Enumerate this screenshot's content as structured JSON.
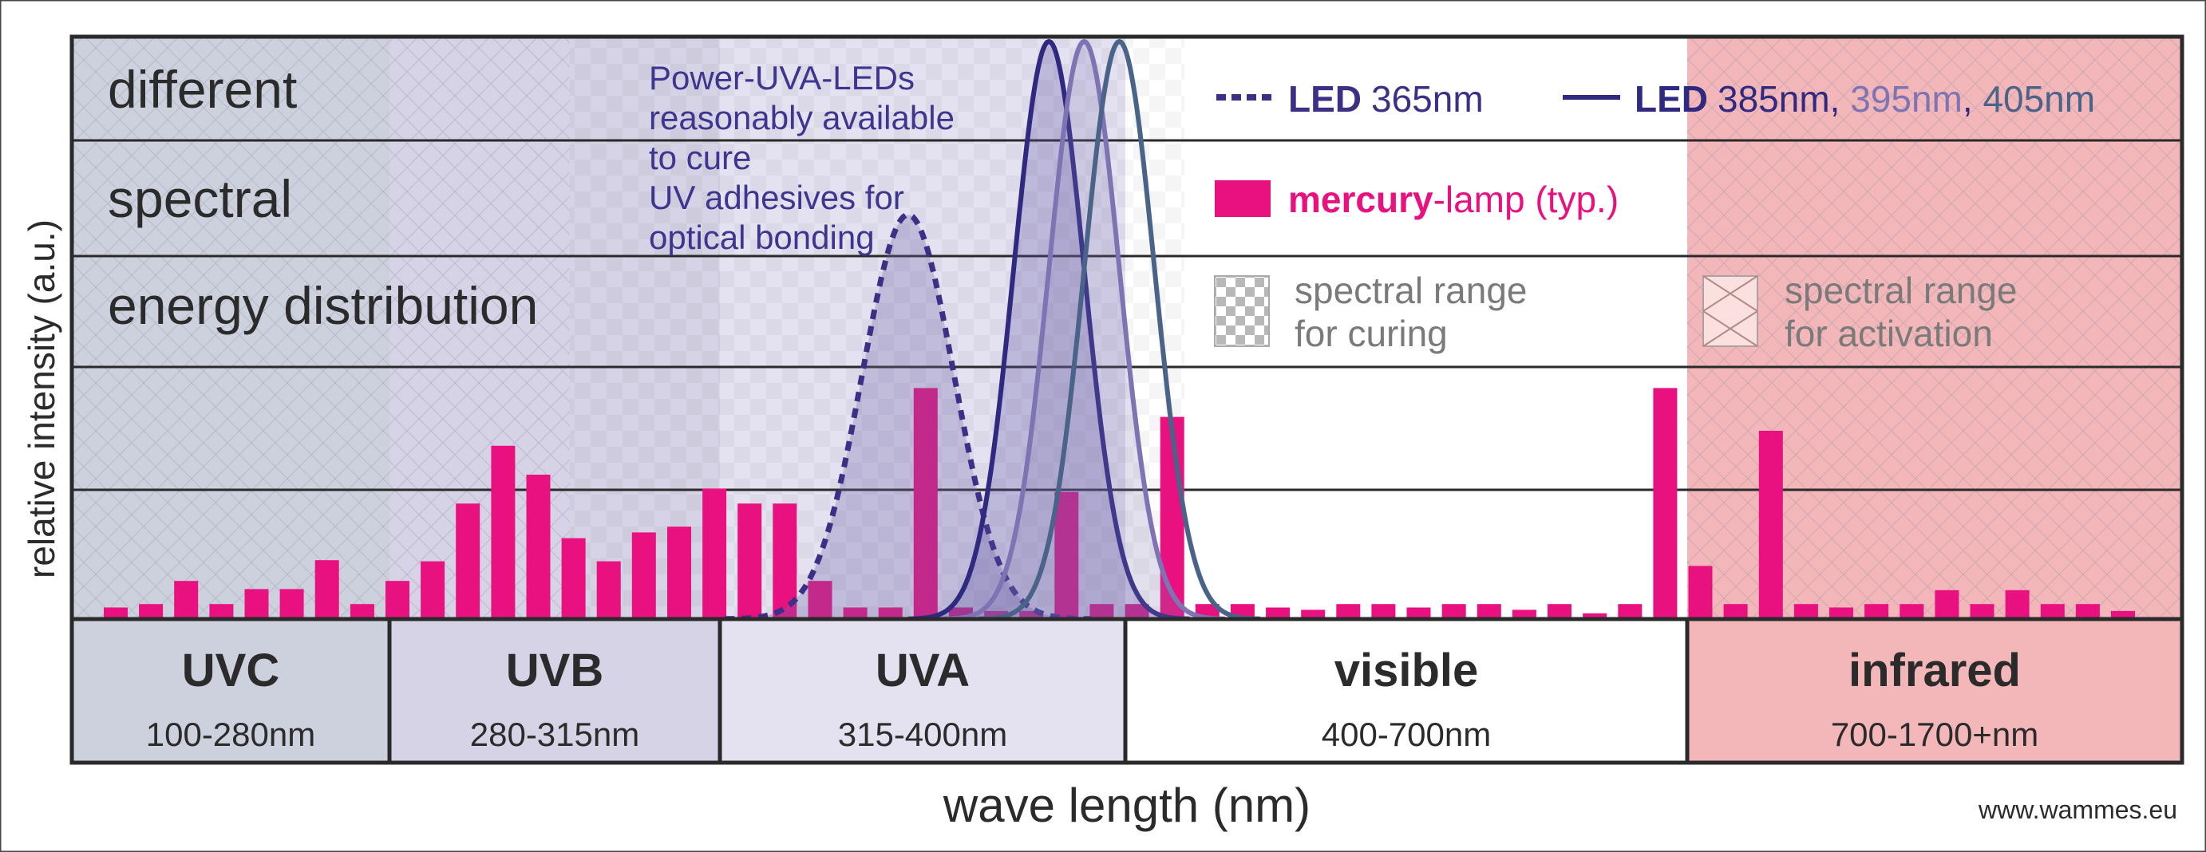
{
  "labels": {
    "ylabel": "relative intensity (a.u.)",
    "xlabel": "wave length (nm)",
    "source": "www.wammes.eu",
    "row_text": [
      "different",
      "spectral",
      "energy distribution"
    ],
    "annotation": [
      "Power-UVA-LEDs",
      "reasonably available",
      "to cure",
      "UV adhesives for",
      "optical bonding"
    ]
  },
  "legend": {
    "led365": {
      "prefix": "LED",
      "value": "365nm"
    },
    "led_multi": {
      "prefix": "LED",
      "v1": "385nm",
      "sep1": ", ",
      "v2": "395nm",
      "sep2": ", ",
      "v3": "405nm"
    },
    "mercury": {
      "bold": "mercury",
      "rest": "-lamp (typ.)"
    },
    "curing": [
      "spectral range",
      "for curing"
    ],
    "activation": [
      "spectral range",
      "for activation"
    ]
  },
  "bands": [
    {
      "name": "UVC",
      "range": "100-280nm",
      "color": "#cdd1dd"
    },
    {
      "name": "UVB",
      "range": "280-315nm",
      "color": "#d6d3e6"
    },
    {
      "name": "UVA",
      "range": "315-400nm",
      "color": "#e4e2f0"
    },
    {
      "name": "visible",
      "range": "400-700nm",
      "color": "#ffffff"
    },
    {
      "name": "infrared",
      "range": "700-1700+nm",
      "color": "#f4b7b9"
    }
  ],
  "colors": {
    "mercury": "#e8117f",
    "led365": "#3b2f86",
    "led385": "#2f2a80",
    "led395": "#7e74b3",
    "led405": "#4a6388",
    "frame": "#222222",
    "annotation": "#3d3590",
    "text": "#2b2b2b"
  },
  "chart_data": {
    "type": "bar",
    "xlabel": "wave length (nm)",
    "ylabel": "relative intensity (a.u.)",
    "ylim": [
      0,
      5
    ],
    "grid": true,
    "series": [
      {
        "name": "mercury-lamp (typ.)",
        "type": "bar",
        "values": [
          0.1,
          0.13,
          0.33,
          0.13,
          0.26,
          0.26,
          0.51,
          0.13,
          0.33,
          0.5,
          1.0,
          1.5,
          1.25,
          0.7,
          0.5,
          0.75,
          0.8,
          1.13,
          1.0,
          1.0,
          0.33,
          0.1,
          0.1,
          2.0,
          0.1,
          0.07,
          0.07,
          1.1,
          0.13,
          0.13,
          1.75,
          0.13,
          0.13,
          0.1,
          0.08,
          0.13,
          0.13,
          0.1,
          0.13,
          0.13,
          0.08,
          0.13,
          0.05,
          0.13,
          2.0,
          0.46,
          0.13,
          1.63,
          0.13,
          0.1,
          0.13,
          0.13,
          0.25,
          0.13,
          0.25,
          0.13,
          0.13,
          0.07
        ]
      },
      {
        "name": "LED 365nm",
        "type": "line",
        "peak_index": 22.5,
        "width": 1.3,
        "peak": 3.5
      },
      {
        "name": "LED 385nm",
        "type": "line",
        "peak_index": 26.5,
        "width": 1.0,
        "peak": 5.0
      },
      {
        "name": "LED 395nm",
        "type": "line",
        "peak_index": 27.5,
        "width": 1.0,
        "peak": 5.0
      },
      {
        "name": "LED 405nm",
        "type": "line",
        "peak_index": 28.5,
        "width": 1.0,
        "peak": 5.0
      }
    ]
  }
}
